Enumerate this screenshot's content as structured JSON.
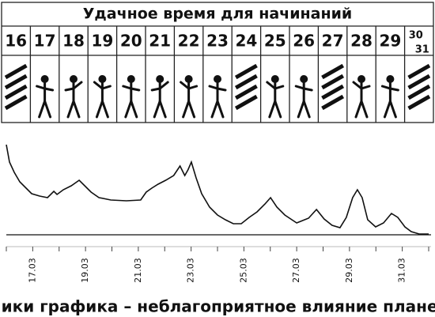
{
  "table": {
    "title": "Удачное время для начинаний",
    "days": [
      "16",
      "17",
      "18",
      "19",
      "20",
      "21",
      "22",
      "23",
      "24",
      "25",
      "26",
      "27",
      "28",
      "29",
      "30",
      "31"
    ]
  },
  "chart_data": {
    "type": "line",
    "caption": "Пики графика – неблагоприятное влияние планет",
    "x": [
      16.0,
      16.12,
      16.3,
      16.51,
      16.72,
      16.96,
      17.26,
      17.56,
      17.8,
      17.92,
      18.16,
      18.46,
      18.76,
      19.0,
      19.21,
      19.51,
      19.96,
      20.55,
      21.09,
      21.3,
      21.51,
      21.75,
      22.04,
      22.34,
      22.58,
      22.76,
      22.88,
      23.01,
      23.19,
      23.4,
      23.7,
      24.0,
      24.3,
      24.6,
      24.9,
      25.2,
      25.5,
      25.8,
      26.01,
      26.25,
      26.55,
      27.0,
      27.45,
      27.75,
      28.04,
      28.34,
      28.64,
      28.88,
      29.12,
      29.3,
      29.48,
      29.69,
      29.99,
      30.29,
      30.59,
      30.83,
      31.1,
      31.34,
      31.64,
      32.0
    ],
    "values": [
      114,
      92,
      79,
      67,
      60,
      52,
      49,
      47,
      55,
      51,
      57,
      62,
      69,
      61,
      54,
      47,
      44,
      43,
      44,
      54,
      59,
      64,
      69,
      75,
      87,
      75,
      82,
      92,
      72,
      52,
      35,
      25,
      19,
      14,
      14,
      22,
      29,
      39,
      47,
      35,
      25,
      15,
      21,
      32,
      20,
      12,
      9,
      22,
      47,
      57,
      47,
      19,
      10,
      15,
      27,
      22,
      10,
      4,
      1,
      1
    ],
    "color": "#111111",
    "xlim": [
      16,
      32
    ],
    "ylim": [
      0,
      120
    ],
    "xticks": [
      {
        "value": 17,
        "label": "17.03"
      },
      {
        "value": 19,
        "label": "19.03"
      },
      {
        "value": 21,
        "label": "21.03"
      },
      {
        "value": 23,
        "label": "23.03"
      },
      {
        "value": 25,
        "label": "25.03"
      },
      {
        "value": 27,
        "label": "27.03"
      },
      {
        "value": 29,
        "label": "29.03"
      },
      {
        "value": 31,
        "label": "31.03"
      }
    ],
    "xminor_ticks": [
      16,
      18,
      20,
      22,
      24,
      26,
      28,
      30,
      32
    ]
  }
}
